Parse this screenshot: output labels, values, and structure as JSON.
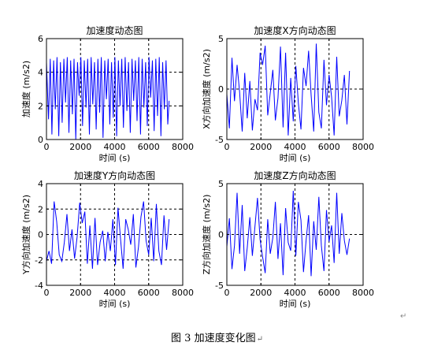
{
  "figure": {
    "caption": "图 3  加速度变化图",
    "return_mark": "↵"
  },
  "chart_data": [
    {
      "type": "line",
      "title": "加速度动态图",
      "xlabel": "时间 (s)",
      "ylabel": "加速度 (m/s2)",
      "xlim": [
        0,
        8000
      ],
      "ylim": [
        0,
        6
      ],
      "xticks": [
        0,
        2000,
        4000,
        6000,
        8000
      ],
      "yticks": [
        0,
        2,
        4,
        6
      ],
      "grid": "dashed at interior ticks",
      "color": "#0000ff",
      "series": [
        {
          "x": [
            0,
            120,
            220,
            320,
            420,
            520,
            620,
            720,
            820,
            920,
            1020,
            1120,
            1220,
            1320,
            1420,
            1520,
            1620,
            1720,
            1820,
            1920,
            2020,
            2120,
            2220,
            2320,
            2420,
            2520,
            2620,
            2720,
            2820,
            2920,
            3020,
            3120,
            3220,
            3320,
            3420,
            3520,
            3620,
            3720,
            3820,
            3920,
            4020,
            4120,
            4220,
            4320,
            4420,
            4520,
            4620,
            4720,
            4820,
            4920,
            5020,
            5120,
            5220,
            5320,
            5420,
            5520,
            5620,
            5720,
            5820,
            5920,
            6020,
            6120,
            6220,
            6320,
            6420,
            6520,
            6620,
            6720,
            6820,
            6920,
            7020,
            7120,
            7200
          ],
          "y": [
            4.6,
            1.2,
            4.8,
            0.3,
            4.7,
            1.8,
            4.9,
            0.2,
            4.6,
            1.0,
            4.8,
            2.2,
            4.9,
            0.4,
            4.7,
            1.5,
            4.8,
            0.0,
            4.6,
            2.6,
            4.9,
            0.8,
            4.7,
            1.9,
            4.8,
            0.3,
            4.9,
            2.1,
            4.6,
            0.6,
            4.8,
            1.6,
            4.9,
            0.1,
            4.7,
            2.4,
            4.8,
            0.9,
            4.6,
            1.3,
            4.9,
            0.2,
            4.7,
            2.0,
            4.8,
            0.7,
            4.9,
            1.7,
            4.6,
            0.4,
            4.8,
            2.3,
            4.7,
            1.1,
            4.9,
            0.3,
            4.8,
            1.9,
            4.6,
            0.8,
            4.9,
            2.5,
            4.7,
            0.5,
            4.8,
            1.4,
            4.9,
            0.2,
            4.6,
            1.8,
            4.7,
            0.9,
            2.3
          ]
        }
      ]
    },
    {
      "type": "line",
      "title": "加速度X方向动态图",
      "xlabel": "时间 (s)",
      "ylabel": "X方向加速度 (m/s2)",
      "xlim": [
        0,
        8000
      ],
      "ylim": [
        -5,
        5
      ],
      "xticks": [
        0,
        2000,
        4000,
        6000,
        8000
      ],
      "yticks": [
        -5,
        0,
        5
      ],
      "grid": "dashed at interior ticks",
      "color": "#0000ff",
      "series": [
        {
          "x": [
            0,
            150,
            300,
            450,
            600,
            750,
            900,
            1050,
            1200,
            1350,
            1500,
            1650,
            1800,
            1950,
            2100,
            2250,
            2400,
            2550,
            2700,
            2850,
            3000,
            3150,
            3300,
            3450,
            3600,
            3750,
            3900,
            4050,
            4200,
            4350,
            4500,
            4650,
            4800,
            4950,
            5100,
            5250,
            5400,
            5550,
            5700,
            5850,
            6000,
            6150,
            6300,
            6450,
            6600,
            6750,
            6900,
            7050,
            7200
          ],
          "y": [
            -0.5,
            -3.9,
            3.1,
            -1.2,
            2.4,
            -0.3,
            -4.2,
            1.6,
            -2.9,
            0.8,
            -4.1,
            -1.0,
            -2.1,
            3.6,
            2.4,
            4.3,
            -2.6,
            -0.4,
            1.9,
            -3.1,
            -0.9,
            4.2,
            -3.8,
            3.6,
            -4.6,
            1.1,
            -3.2,
            2.3,
            -1.4,
            -4.0,
            2.1,
            0.3,
            3.8,
            -0.6,
            -4.2,
            4.5,
            -2.3,
            -3.9,
            2.9,
            -1.6,
            1.4,
            -0.8,
            -4.6,
            3.2,
            -2.7,
            -1.1,
            1.4,
            -3.5,
            1.8
          ]
        }
      ]
    },
    {
      "type": "line",
      "title": "加速度Y方向动态图",
      "xlabel": "时间 (s)",
      "ylabel": "Y方向加速度 (m/s2)",
      "xlim": [
        0,
        8000
      ],
      "ylim": [
        -4,
        4
      ],
      "xticks": [
        0,
        2000,
        4000,
        6000,
        8000
      ],
      "yticks": [
        -4,
        -2,
        0,
        2,
        4
      ],
      "grid": "dashed at interior ticks",
      "color": "#0000ff",
      "series": [
        {
          "x": [
            0,
            150,
            300,
            450,
            600,
            750,
            900,
            1050,
            1200,
            1350,
            1500,
            1650,
            1800,
            1950,
            2100,
            2250,
            2400,
            2550,
            2700,
            2850,
            3000,
            3150,
            3300,
            3450,
            3600,
            3750,
            3900,
            4050,
            4200,
            4350,
            4500,
            4650,
            4800,
            4950,
            5100,
            5250,
            5400,
            5550,
            5700,
            5850,
            6000,
            6150,
            6300,
            6450,
            6600,
            6750,
            6900,
            7050,
            7200
          ],
          "y": [
            -2.1,
            -1.3,
            -2.3,
            2.6,
            1.0,
            -1.6,
            -2.1,
            -0.6,
            1.6,
            -1.3,
            0.4,
            -1.9,
            -0.2,
            2.5,
            0.9,
            1.8,
            -2.3,
            0.7,
            -2.7,
            1.3,
            -2.4,
            -0.6,
            0.3,
            -2.1,
            0.2,
            -1.3,
            1.2,
            -2.4,
            2.1,
            -0.4,
            -2.7,
            1.2,
            0.4,
            -0.8,
            1.6,
            -2.6,
            -1.0,
            1.4,
            2.6,
            -0.5,
            -1.6,
            1.3,
            -2.1,
            2.4,
            -1.3,
            -2.4,
            1.5,
            -1.2,
            1.2
          ]
        }
      ]
    },
    {
      "type": "line",
      "title": "加速度Z方向动态图",
      "xlabel": "时间 (s)",
      "ylabel": "Z方向加速度 (m/s2)",
      "xlim": [
        0,
        8000
      ],
      "ylim": [
        -5,
        5
      ],
      "xticks": [
        0,
        2000,
        4000,
        6000,
        8000
      ],
      "yticks": [
        -5,
        0,
        5
      ],
      "grid": "dashed at interior ticks",
      "color": "#0000ff",
      "series": [
        {
          "x": [
            0,
            150,
            300,
            450,
            600,
            750,
            900,
            1050,
            1200,
            1350,
            1500,
            1650,
            1800,
            1950,
            2100,
            2250,
            2400,
            2550,
            2700,
            2850,
            3000,
            3150,
            3300,
            3450,
            3600,
            3750,
            3900,
            4050,
            4200,
            4350,
            4500,
            4650,
            4800,
            4950,
            5100,
            5250,
            5400,
            5550,
            5700,
            5850,
            6000,
            6150,
            6300,
            6450,
            6600,
            6750,
            6900,
            7050,
            7200
          ],
          "y": [
            -1.2,
            1.6,
            -3.4,
            -1.1,
            4.1,
            -1.9,
            2.9,
            -3.6,
            -1.3,
            1.7,
            -2.1,
            0.8,
            3.6,
            -0.5,
            -2.2,
            -3.8,
            1.5,
            -1.9,
            -0.3,
            3.2,
            -2.4,
            1.1,
            -4.0,
            2.6,
            -0.8,
            -1.6,
            4.3,
            -2.1,
            3.2,
            1.4,
            -3.7,
            -0.6,
            1.9,
            -4.1,
            1.3,
            -1.5,
            3.7,
            -1.1,
            -3.6,
            2.4,
            -0.7,
            0.9,
            -2.8,
            4.1,
            -1.9,
            2.1,
            -0.6,
            -2.0,
            -0.4
          ]
        }
      ]
    }
  ]
}
